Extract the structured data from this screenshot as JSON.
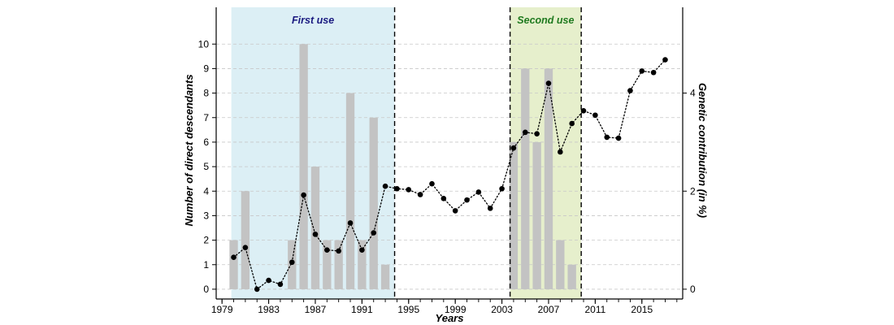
{
  "chart_data": {
    "type": "bar+line",
    "xlabel": "Years",
    "ylabel_left": "Number of direct descendants",
    "ylabel_right": "Genetic contribution (in %)",
    "x_ticks": [
      "1979",
      "1983",
      "1987",
      "1991",
      "1995",
      "1999",
      "2003",
      "2007",
      "2011",
      "2015"
    ],
    "y_left_ticks": [
      "0",
      "1",
      "2",
      "3",
      "4",
      "5",
      "6",
      "7",
      "8",
      "9",
      "10"
    ],
    "y_right_ticks": [
      "0",
      "2",
      "4"
    ],
    "xlim": [
      1978.5,
      2018.5
    ],
    "ylim_left": [
      -0.4,
      11.5
    ],
    "bars": {
      "name": "Number of direct descendants",
      "color": "#c3c3c3",
      "x": [
        1980,
        1981,
        1985,
        1986,
        1987,
        1988,
        1989,
        1990,
        1991,
        1992,
        1993,
        2004,
        2005,
        2006,
        2007,
        2008,
        2009
      ],
      "values": [
        2,
        4,
        2,
        10,
        5,
        2,
        2,
        8,
        2,
        7,
        1,
        6,
        9,
        6,
        9,
        2,
        1
      ]
    },
    "line": {
      "name": "Genetic contribution (in %)",
      "style": "dotted",
      "color": "#000000",
      "x": [
        1980,
        1981,
        1982,
        1983,
        1984,
        1985,
        1986,
        1987,
        1988,
        1989,
        1990,
        1991,
        1992,
        1993,
        1994,
        1995,
        1996,
        1997,
        1998,
        1999,
        2000,
        2001,
        2002,
        2003,
        2004,
        2005,
        2006,
        2007,
        2008,
        2009,
        2010,
        2011,
        2012,
        2013,
        2014,
        2015,
        2016,
        2017
      ],
      "values": [
        0.65,
        0.85,
        0.0,
        0.18,
        0.1,
        0.55,
        1.92,
        1.12,
        0.8,
        0.78,
        1.35,
        0.8,
        1.15,
        2.1,
        2.05,
        2.03,
        1.93,
        2.15,
        1.85,
        1.6,
        1.82,
        1.98,
        1.65,
        2.05,
        2.88,
        3.2,
        3.17,
        4.2,
        2.8,
        3.38,
        3.64,
        3.55,
        3.1,
        3.08,
        4.05,
        4.45,
        4.42,
        4.68
      ]
    },
    "right_axis": {
      "ylim": [
        -0.2,
        5.75
      ],
      "ticks": [
        0,
        2,
        4
      ]
    },
    "bands": [
      {
        "label": "First use",
        "x_start": 1979.8,
        "x_end": 1993.8,
        "fill": "#dcefF5",
        "label_color": "#1a1a80"
      },
      {
        "label": "Second use",
        "x_start": 2003.7,
        "x_end": 2009.8,
        "fill": "#e6efcc",
        "label_color": "#1f7a1f"
      }
    ],
    "grid": "horizontal dashed"
  }
}
